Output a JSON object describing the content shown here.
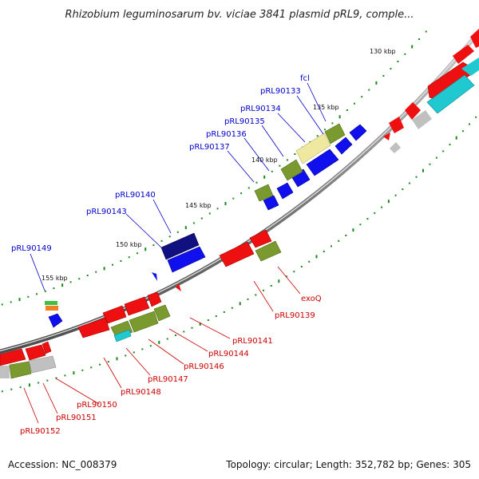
{
  "title": "Rhizobium leguminosarum bv. viciae 3841 plasmid pRL9, comple...",
  "accession": "Accession: NC_008379",
  "summary": "Topology: circular; Length: 352,782 bp; Genes: 305",
  "kbp_ticks": [
    "130 kbp",
    "135 kbp",
    "140 kbp",
    "145 kbp",
    "150 kbp",
    "155 kbp"
  ],
  "forward_gene_labels": [
    "fcl",
    "pRL90133",
    "pRL90134",
    "pRL90135",
    "pRL90136",
    "pRL90137",
    "pRL90140",
    "pRL90143",
    "pRL90149"
  ],
  "reverse_gene_labels": [
    "exoQ",
    "pRL90139",
    "pRL90141",
    "pRL90144",
    "pRL90146",
    "pRL90147",
    "pRL90148",
    "pRL90150",
    "pRL90151",
    "pRL90152"
  ],
  "colors": {
    "backbone": "#8a8a8a",
    "forward_cds": "#1010ee",
    "forward_dark": "#101080",
    "reverse_cds": "#ee1010",
    "cog_olive": "#7a9a30",
    "cog_yellow": "#eee8a0",
    "cog_cyan": "#20c8d0",
    "cog_grey": "#c0c0c0",
    "cog_orange": "#f08020",
    "cog_green": "#40c040",
    "tick_green": "#1a8a1a",
    "label_blue": "#0000cc",
    "label_red": "#cc0000"
  }
}
